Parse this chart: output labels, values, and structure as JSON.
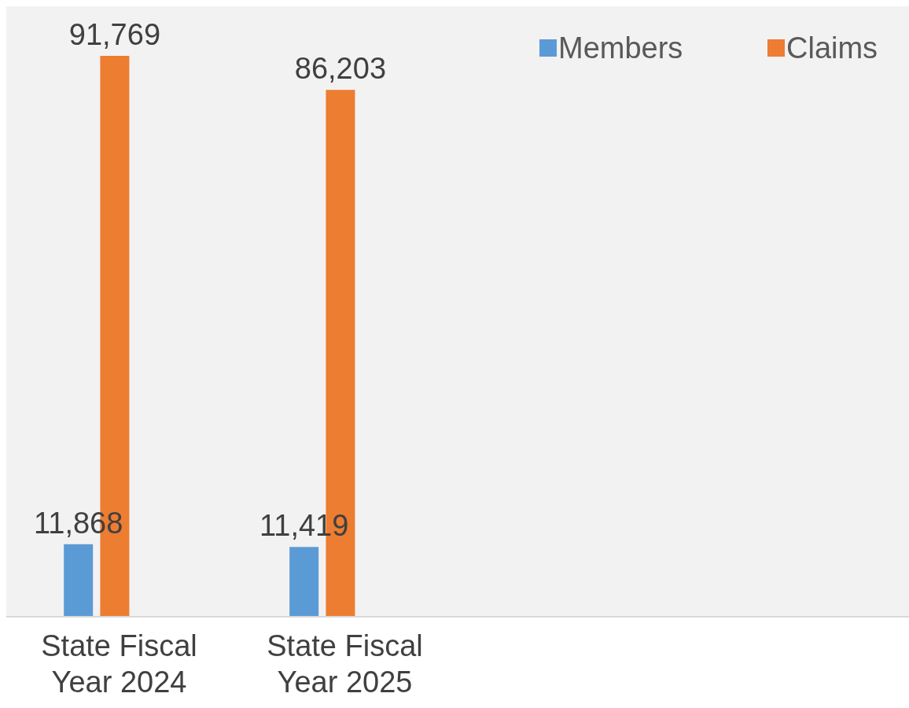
{
  "chart_data": {
    "type": "bar",
    "categories": [
      "State Fiscal Year 2024",
      "State Fiscal Year 2025",
      null,
      null
    ],
    "series": [
      {
        "name": "Members",
        "color": "#5b9bd5",
        "values": [
          11868,
          11419,
          null,
          null
        ],
        "value_labels": [
          "11,868",
          "11,419",
          null,
          null
        ]
      },
      {
        "name": "Claims",
        "color": "#ed7d31",
        "values": [
          91769,
          86203,
          null,
          null
        ],
        "value_labels": [
          "91,769",
          "86,203",
          null,
          null
        ]
      }
    ],
    "legend": "top right"
  }
}
